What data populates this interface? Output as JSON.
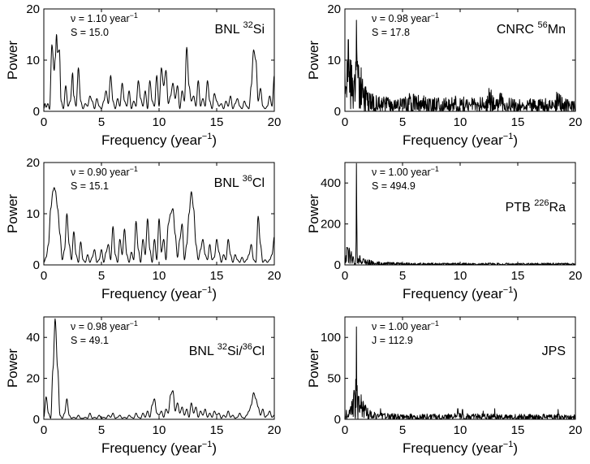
{
  "figure": {
    "xlabel_main": "Frequency (year",
    "xlabel_exp": "−1",
    "xlabel_close": ")",
    "ylabel": "Power"
  },
  "chart_data": [
    {
      "type": "line",
      "label_parts": [
        {
          "t": "BNL "
        },
        {
          "t": "32",
          "sup": true
        },
        {
          "t": "Si"
        }
      ],
      "annotation_line1_main": "ν = 1.10 year",
      "annotation_line1_exp": "−1",
      "annotation_line2": "S = 15.0",
      "xlim": [
        0,
        20
      ],
      "ylim": [
        0,
        20
      ],
      "xticks": [
        0,
        5,
        10,
        15,
        20
      ],
      "yticks": [
        0,
        10,
        20
      ],
      "xlabel": "Frequency (year−1)",
      "ylabel": "Power",
      "peak_frequency": 1.1,
      "peak_power": 15.0,
      "series": [
        {
          "name": "BNL 32Si",
          "style": "smooth",
          "x": [
            0,
            0.1,
            0.2,
            0.35,
            0.5,
            0.7,
            0.9,
            1.0,
            1.1,
            1.2,
            1.35,
            1.5,
            1.7,
            1.9,
            2.1,
            2.3,
            2.5,
            2.6,
            2.8,
            3.0,
            3.2,
            3.4,
            3.6,
            3.8,
            4.0,
            4.2,
            4.4,
            4.6,
            4.8,
            5.0,
            5.2,
            5.4,
            5.6,
            5.8,
            6.0,
            6.2,
            6.4,
            6.6,
            6.8,
            7.0,
            7.2,
            7.4,
            7.6,
            7.8,
            8.0,
            8.2,
            8.4,
            8.6,
            8.8,
            9.0,
            9.2,
            9.4,
            9.6,
            9.8,
            10.0,
            10.2,
            10.4,
            10.6,
            10.8,
            11.0,
            11.2,
            11.4,
            11.6,
            11.8,
            12.0,
            12.2,
            12.4,
            12.6,
            12.8,
            13.0,
            13.2,
            13.4,
            13.6,
            13.8,
            14.0,
            14.2,
            14.4,
            14.6,
            14.8,
            15.0,
            15.2,
            15.4,
            15.6,
            15.8,
            16.0,
            16.2,
            16.4,
            16.6,
            16.8,
            17.0,
            17.2,
            17.4,
            17.6,
            17.8,
            18.0,
            18.2,
            18.4,
            18.6,
            18.8,
            19.0,
            19.2,
            19.4,
            19.6,
            19.8,
            20.0
          ],
          "y": [
            0.5,
            1.5,
            0.8,
            1.5,
            0.4,
            13.0,
            8.0,
            10.5,
            15.0,
            11.5,
            12.0,
            2.0,
            0.5,
            5.0,
            1.0,
            2.0,
            7.5,
            3.0,
            1.0,
            8.5,
            2.0,
            0.5,
            1.5,
            1.0,
            3.0,
            2.0,
            0.5,
            2.5,
            1.0,
            0.5,
            2.0,
            4.0,
            1.5,
            7.0,
            2.0,
            0.5,
            2.5,
            1.0,
            5.5,
            2.0,
            1.0,
            4.0,
            0.5,
            2.0,
            1.0,
            6.0,
            2.5,
            1.0,
            4.0,
            0.5,
            6.0,
            2.0,
            1.0,
            7.0,
            1.0,
            8.5,
            5.0,
            8.0,
            1.5,
            3.0,
            5.5,
            2.5,
            5.0,
            0.5,
            4.0,
            2.0,
            12.5,
            5.0,
            2.0,
            3.0,
            1.0,
            6.0,
            1.0,
            2.5,
            1.0,
            6.0,
            2.0,
            0.5,
            3.5,
            2.0,
            1.0,
            1.5,
            0.5,
            2.0,
            1.0,
            3.0,
            0.5,
            1.5,
            2.5,
            1.0,
            0.5,
            2.0,
            1.0,
            0.5,
            5.0,
            12.0,
            10.0,
            2.0,
            4.5,
            1.0,
            0.5,
            1.0,
            3.0,
            1.0,
            7.0
          ]
        }
      ]
    },
    {
      "type": "line",
      "label_parts": [
        {
          "t": "CNRC "
        },
        {
          "t": "56",
          "sup": true
        },
        {
          "t": "Mn"
        }
      ],
      "annotation_line1_main": "ν = 0.98 year",
      "annotation_line1_exp": "−1",
      "annotation_line2": "S = 17.8",
      "xlim": [
        0,
        20
      ],
      "ylim": [
        0,
        20
      ],
      "xticks": [
        0,
        5,
        10,
        15,
        20
      ],
      "yticks": [
        0,
        10,
        20
      ],
      "xlabel": "Frequency (year−1)",
      "ylabel": "Power",
      "peak_frequency": 0.98,
      "peak_power": 17.8,
      "series": [
        {
          "name": "CNRC 56Mn",
          "style": "noisy",
          "x": [
            0,
            0.3,
            0.6,
            1.0,
            2.0,
            3.0,
            4.0,
            5.0,
            6.0,
            7.0,
            8.0,
            9.0,
            10.0,
            11.0,
            12.0,
            12.6,
            13.0,
            13.6,
            14.0,
            15.0,
            16.0,
            17.0,
            18.0,
            18.5,
            19.0,
            20.0
          ],
          "y": [
            5,
            11,
            4,
            7,
            2,
            1.5,
            1.5,
            1.5,
            1.8,
            1.6,
            1.4,
            1.5,
            1.6,
            1.4,
            1.5,
            2.5,
            1.5,
            2.2,
            1.4,
            1.3,
            1.3,
            1.3,
            1.6,
            2.3,
            1.3,
            1.3
          ],
          "peaks": [
            [
              0.3,
              14.0
            ],
            [
              0.6,
              9.0
            ],
            [
              1.0,
              17.8
            ],
            [
              0.8,
              6.0
            ],
            [
              12.5,
              4.5
            ],
            [
              13.6,
              3.5
            ],
            [
              18.5,
              3.5
            ],
            [
              5.6,
              3.5
            ],
            [
              9.6,
              3.0
            ]
          ]
        }
      ]
    },
    {
      "type": "line",
      "label_parts": [
        {
          "t": "BNL "
        },
        {
          "t": "36",
          "sup": true
        },
        {
          "t": "Cl"
        }
      ],
      "annotation_line1_main": "ν = 0.90 year",
      "annotation_line1_exp": "−1",
      "annotation_line2": "S = 15.1",
      "xlim": [
        0,
        20
      ],
      "ylim": [
        0,
        20
      ],
      "xticks": [
        0,
        5,
        10,
        15,
        20
      ],
      "yticks": [
        0,
        10,
        20
      ],
      "xlabel": "Frequency (year−1)",
      "ylabel": "Power",
      "peak_frequency": 0.9,
      "peak_power": 15.1,
      "series": [
        {
          "name": "BNL 36Cl",
          "style": "smooth",
          "x": [
            0,
            0.2,
            0.4,
            0.6,
            0.8,
            0.9,
            1.0,
            1.2,
            1.4,
            1.6,
            1.8,
            2.0,
            2.2,
            2.4,
            2.6,
            2.8,
            3.0,
            3.2,
            3.4,
            3.6,
            3.8,
            4.0,
            4.2,
            4.4,
            4.6,
            4.8,
            5.0,
            5.2,
            5.4,
            5.6,
            5.8,
            6.0,
            6.2,
            6.4,
            6.6,
            6.8,
            7.0,
            7.2,
            7.4,
            7.6,
            7.8,
            8.0,
            8.2,
            8.4,
            8.6,
            8.8,
            9.0,
            9.2,
            9.4,
            9.6,
            9.8,
            10.0,
            10.2,
            10.4,
            10.6,
            10.8,
            11.0,
            11.2,
            11.4,
            11.6,
            11.8,
            12.0,
            12.2,
            12.4,
            12.6,
            12.8,
            13.0,
            13.2,
            13.4,
            13.6,
            13.8,
            14.0,
            14.2,
            14.4,
            14.6,
            14.8,
            15.0,
            15.2,
            15.4,
            15.6,
            15.8,
            16.0,
            16.2,
            16.4,
            16.6,
            16.8,
            17.0,
            17.2,
            17.4,
            17.6,
            17.8,
            18.0,
            18.2,
            18.4,
            18.6,
            18.8,
            19.0,
            19.2,
            19.4,
            19.6,
            19.8,
            20.0
          ],
          "y": [
            0.5,
            1.5,
            4.0,
            11.0,
            14.5,
            15.1,
            14.5,
            11.0,
            6.0,
            1.0,
            3.0,
            10.0,
            4.0,
            1.0,
            6.5,
            2.0,
            0.5,
            4.5,
            1.0,
            0.5,
            2.0,
            0.5,
            1.5,
            3.0,
            0.5,
            1.0,
            3.0,
            0.5,
            2.5,
            4.0,
            1.0,
            7.5,
            2.0,
            0.5,
            5.0,
            2.0,
            7.0,
            2.0,
            0.5,
            2.5,
            1.0,
            8.5,
            3.0,
            0.5,
            5.0,
            2.0,
            9.0,
            3.0,
            0.5,
            5.0,
            1.0,
            9.0,
            2.5,
            5.0,
            1.0,
            8.0,
            10.0,
            11.0,
            6.0,
            1.5,
            5.0,
            8.0,
            1.0,
            4.0,
            10.0,
            14.3,
            11.0,
            4.0,
            1.0,
            3.0,
            5.0,
            2.0,
            1.0,
            4.0,
            1.0,
            1.5,
            5.0,
            2.5,
            0.5,
            2.0,
            1.0,
            5.0,
            2.0,
            0.5,
            2.0,
            1.0,
            0.5,
            1.5,
            0.5,
            1.0,
            2.0,
            4.0,
            1.0,
            0.5,
            9.5,
            4.0,
            0.5,
            1.0,
            0.5,
            1.0,
            2.0,
            5.5
          ]
        }
      ]
    },
    {
      "type": "line",
      "label_parts": [
        {
          "t": "PTB "
        },
        {
          "t": "226",
          "sup": true
        },
        {
          "t": "Ra"
        }
      ],
      "annotation_line1_main": "ν = 1.00 year",
      "annotation_line1_exp": "−1",
      "annotation_line2": "S = 494.9",
      "xlim": [
        0,
        20
      ],
      "ylim": [
        0,
        500
      ],
      "xticks": [
        0,
        5,
        10,
        15,
        20
      ],
      "yticks": [
        0,
        200,
        400
      ],
      "xlabel": "Frequency (year−1)",
      "ylabel": "Power",
      "peak_frequency": 1.0,
      "peak_power": 494.9,
      "series": [
        {
          "name": "PTB 226Ra",
          "style": "noisy",
          "x": [
            0,
            0.3,
            0.6,
            0.8,
            1.5,
            2.0,
            2.5,
            3.0,
            5.0,
            10.0,
            15.0,
            20.0
          ],
          "y": [
            55,
            60,
            35,
            25,
            20,
            14,
            10,
            8,
            6,
            5,
            5,
            5
          ],
          "peaks": [
            [
              0.2,
              85
            ],
            [
              0.4,
              70
            ],
            [
              0.7,
              40
            ],
            [
              1.0,
              494.9
            ],
            [
              1.3,
              45
            ],
            [
              1.6,
              30
            ]
          ]
        }
      ]
    },
    {
      "type": "line",
      "label_parts": [
        {
          "t": "BNL "
        },
        {
          "t": "32",
          "sup": true
        },
        {
          "t": "Si/"
        },
        {
          "t": "36",
          "sup": true
        },
        {
          "t": "Cl"
        }
      ],
      "annotation_line1_main": "ν = 0.98 year",
      "annotation_line1_exp": "−1",
      "annotation_line2": "S = 49.1",
      "xlim": [
        0,
        20
      ],
      "ylim": [
        0,
        50
      ],
      "xticks": [
        0,
        5,
        10,
        15,
        20
      ],
      "yticks": [
        0,
        20,
        40
      ],
      "xlabel": "Frequency (year−1)",
      "ylabel": "Power",
      "peak_frequency": 0.98,
      "peak_power": 49.1,
      "series": [
        {
          "name": "BNL 32Si/36Cl",
          "style": "smooth",
          "x": [
            0,
            0.2,
            0.4,
            0.6,
            0.8,
            0.98,
            1.2,
            1.4,
            1.6,
            1.8,
            2.0,
            2.2,
            2.4,
            2.6,
            2.8,
            3.0,
            3.2,
            3.4,
            3.6,
            3.8,
            4.0,
            4.2,
            4.4,
            4.6,
            4.8,
            5.0,
            5.2,
            5.4,
            5.6,
            5.8,
            6.0,
            6.2,
            6.4,
            6.6,
            6.8,
            7.0,
            7.2,
            7.4,
            7.6,
            7.8,
            8.0,
            8.2,
            8.4,
            8.6,
            8.8,
            9.0,
            9.2,
            9.4,
            9.6,
            9.8,
            10.0,
            10.2,
            10.4,
            10.6,
            10.8,
            11.0,
            11.2,
            11.4,
            11.6,
            11.8,
            12.0,
            12.2,
            12.4,
            12.6,
            12.8,
            13.0,
            13.2,
            13.4,
            13.6,
            13.8,
            14.0,
            14.2,
            14.4,
            14.6,
            14.8,
            15.0,
            15.2,
            15.4,
            15.6,
            15.8,
            16.0,
            16.2,
            16.4,
            16.6,
            16.8,
            17.0,
            17.2,
            17.4,
            17.6,
            17.8,
            18.0,
            18.2,
            18.4,
            18.6,
            18.8,
            19.0,
            19.2,
            19.4,
            19.6,
            19.8,
            20.0
          ],
          "y": [
            1,
            11,
            3,
            0.5,
            25,
            49.1,
            25,
            2,
            0.5,
            3,
            10,
            2,
            0.5,
            1,
            0.5,
            2,
            0.5,
            0.5,
            1,
            0.5,
            3,
            0.5,
            1,
            0.5,
            2,
            0.5,
            1,
            0.5,
            2,
            1,
            3,
            0.5,
            1,
            2,
            0.5,
            1,
            0.5,
            2,
            1,
            0.5,
            3,
            1,
            0.5,
            3,
            1,
            4,
            1,
            7,
            10,
            3,
            2,
            4,
            1,
            5,
            3,
            12,
            14,
            4,
            8,
            3,
            6,
            2,
            5,
            1,
            8,
            3,
            6,
            1,
            4,
            2,
            5,
            1,
            3,
            1,
            4,
            2,
            3,
            0.5,
            2,
            1,
            4,
            1,
            2,
            0.5,
            1,
            3,
            1,
            0.5,
            2,
            4,
            7,
            13,
            10,
            6,
            2,
            5,
            1,
            2,
            4,
            1,
            2
          ]
        }
      ]
    },
    {
      "type": "line",
      "label_parts": [
        {
          "t": "JPS"
        }
      ],
      "annotation_line1_main": "ν = 1.00 year",
      "annotation_line1_exp": "−1",
      "annotation_line2": "J = 112.9",
      "xlim": [
        0,
        20
      ],
      "ylim": [
        0,
        125
      ],
      "xticks": [
        0,
        5,
        10,
        15,
        20
      ],
      "yticks": [
        0,
        50,
        100
      ],
      "xlabel": "Frequency (year−1)",
      "ylabel": "Power",
      "peak_frequency": 1.0,
      "peak_power": 112.9,
      "series": [
        {
          "name": "JPS",
          "style": "noisy",
          "x": [
            0,
            0.3,
            0.6,
            0.8,
            1.2,
            1.6,
            2.0,
            2.5,
            3.0,
            5.0,
            8.0,
            10.0,
            12.0,
            15.0,
            18.0,
            20.0
          ],
          "y": [
            6,
            7,
            10,
            20,
            18,
            12,
            7,
            5,
            4,
            3.5,
            3.5,
            4,
            3.5,
            3.3,
            3.5,
            3
          ],
          "peaks": [
            [
              0.6,
              22
            ],
            [
              0.8,
              35
            ],
            [
              1.0,
              112.9
            ],
            [
              1.2,
              28
            ],
            [
              1.4,
              30
            ],
            [
              1.6,
              22
            ],
            [
              3.1,
              13
            ],
            [
              9.8,
              13
            ],
            [
              10.2,
              12
            ],
            [
              13.0,
              13
            ],
            [
              18.5,
              12
            ],
            [
              12.0,
              10
            ]
          ]
        }
      ]
    }
  ]
}
